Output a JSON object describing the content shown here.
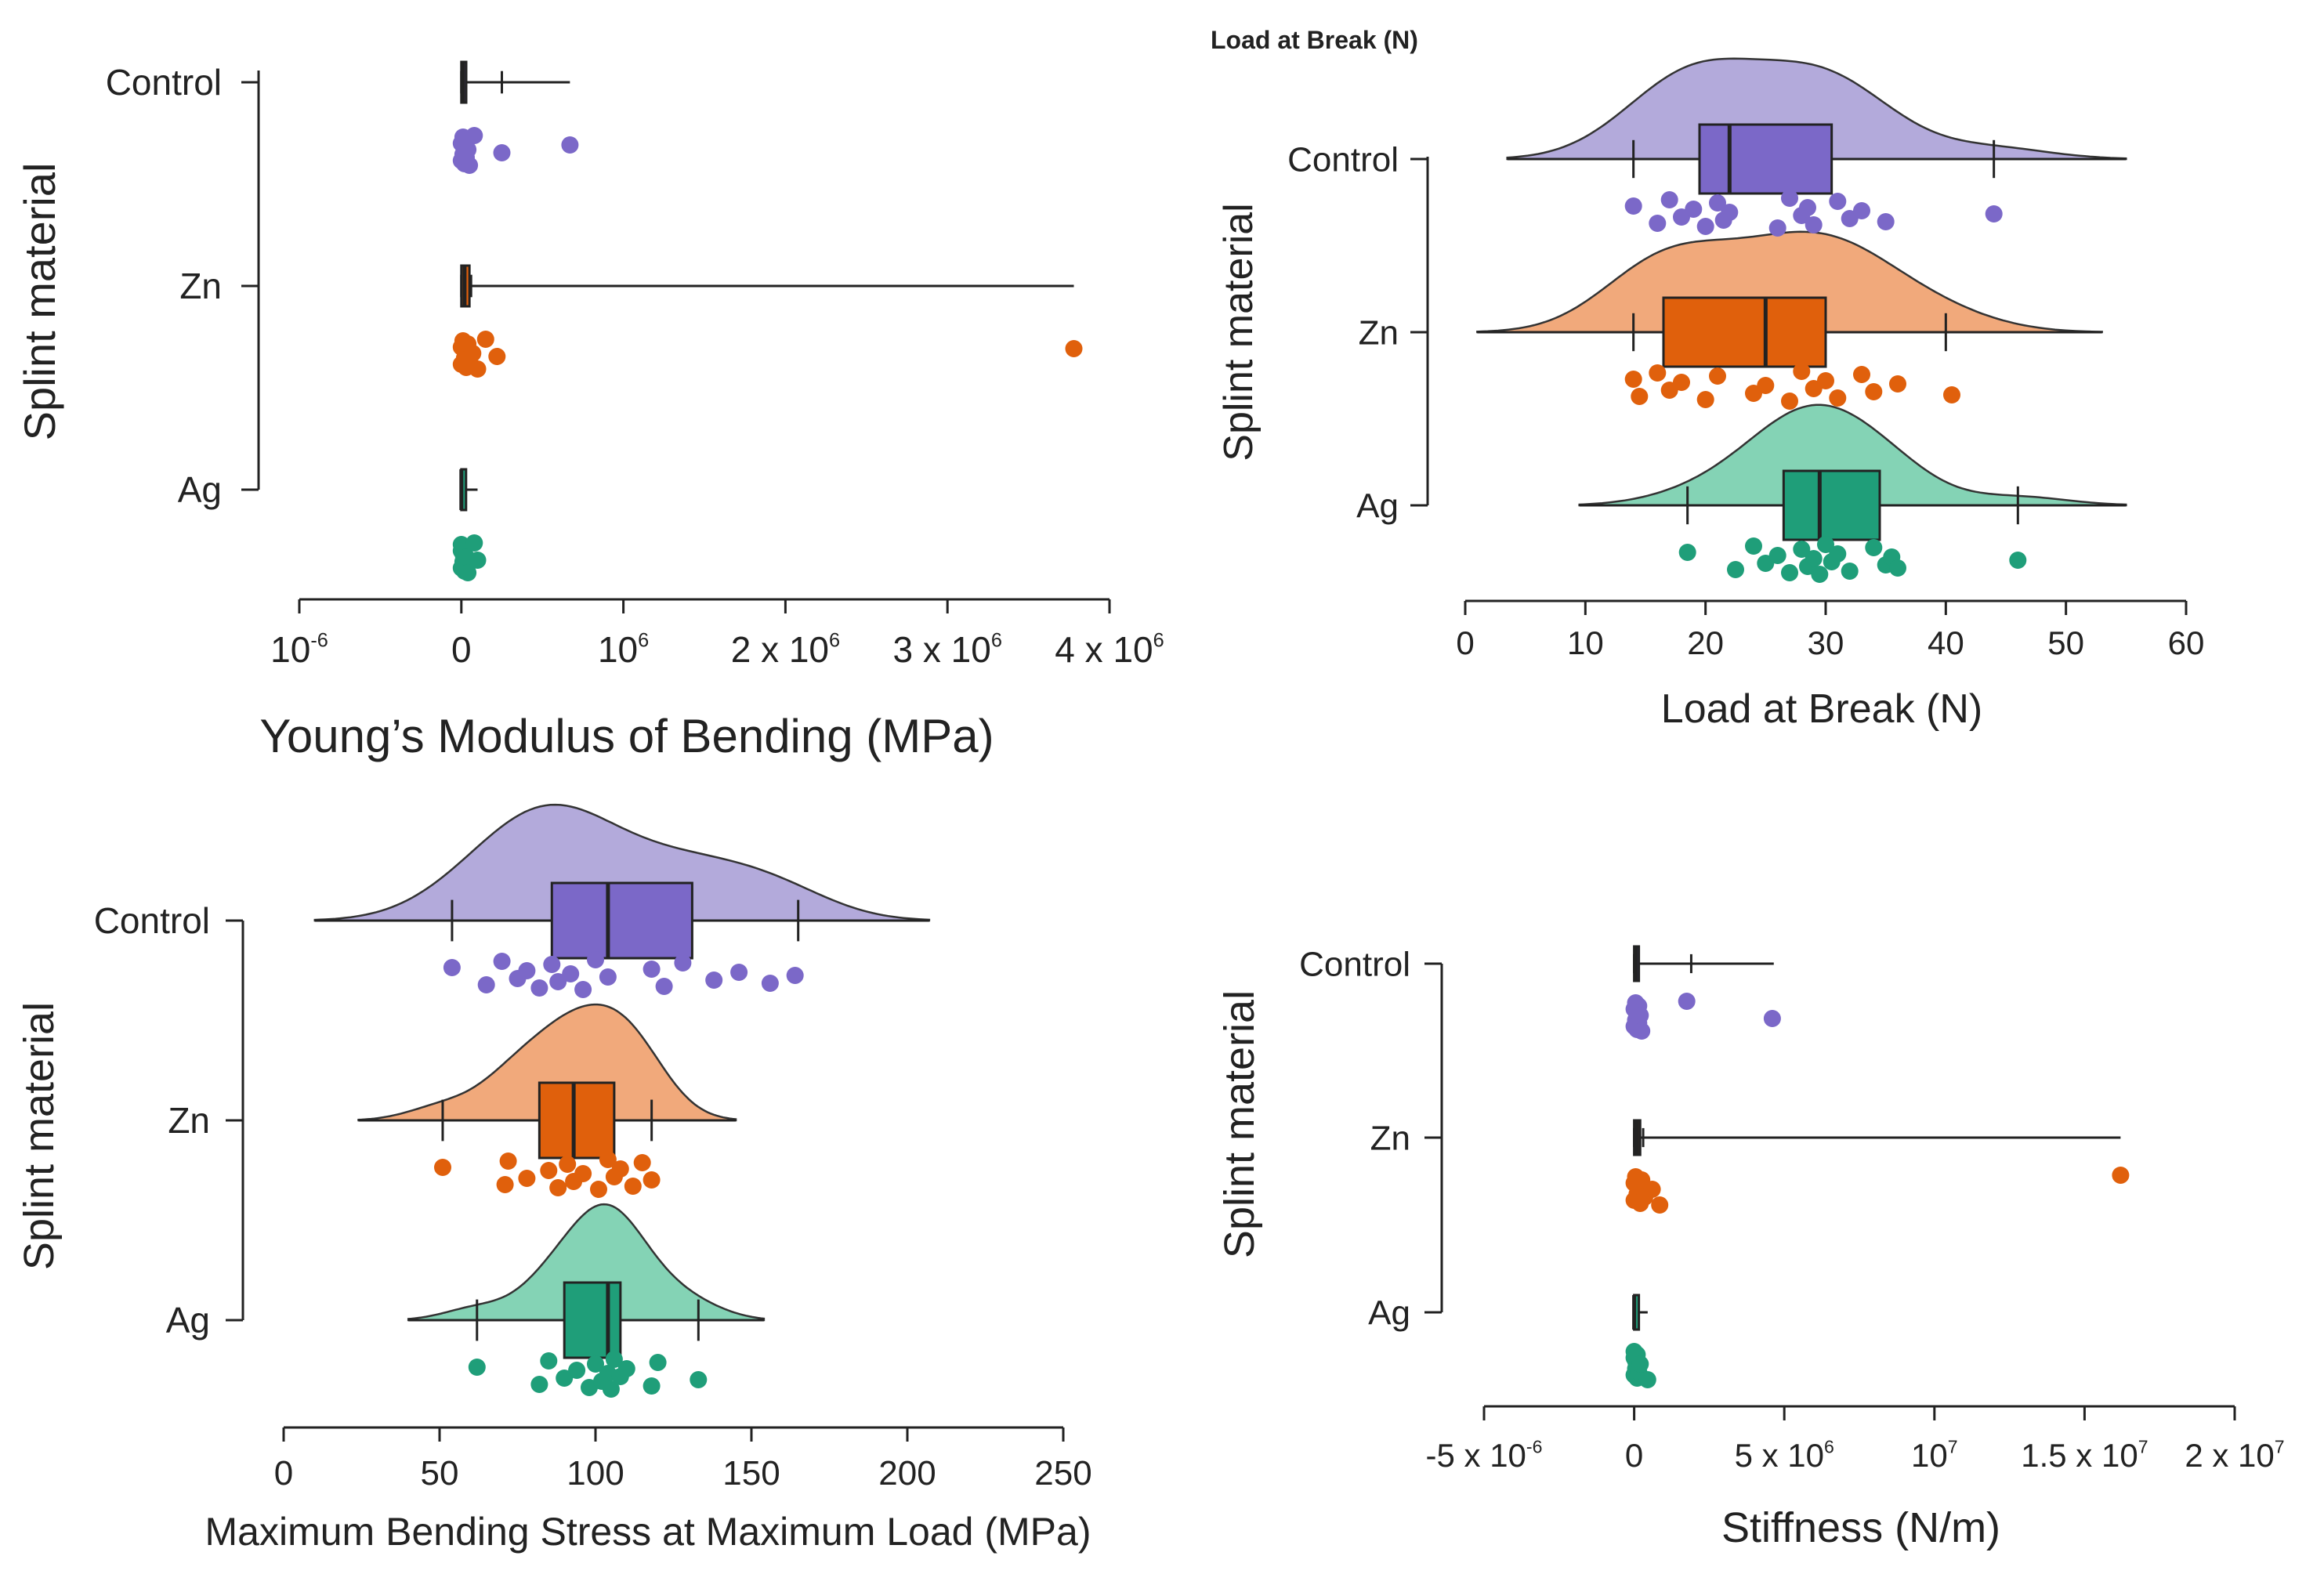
{
  "panels": [
    {
      "id": "youngs-modulus",
      "panel_title": "",
      "xlabel": "Young’s Modulus of Bending (MPa)",
      "ylabel": "Splint material",
      "ticks": [
        {
          "v": 0,
          "base": "10",
          "sup": "-6"
        },
        {
          "v": 1,
          "base": "0",
          "sup": ""
        },
        {
          "v": 2,
          "base": "10",
          "sup": "6"
        },
        {
          "v": 3,
          "base": "2 x 10",
          "sup": "6"
        },
        {
          "v": 4,
          "base": "3 x 10",
          "sup": "6"
        },
        {
          "v": 5,
          "base": "4 x 10",
          "sup": "6"
        }
      ]
    },
    {
      "id": "load-at-break",
      "panel_title": "Load at Break (N)",
      "xlabel": "Load at Break (N)",
      "ylabel": "Splint material",
      "ticks": [
        {
          "v": 0,
          "base": "0",
          "sup": ""
        },
        {
          "v": 10,
          "base": "10",
          "sup": ""
        },
        {
          "v": 20,
          "base": "20",
          "sup": ""
        },
        {
          "v": 30,
          "base": "30",
          "sup": ""
        },
        {
          "v": 40,
          "base": "40",
          "sup": ""
        },
        {
          "v": 50,
          "base": "50",
          "sup": ""
        },
        {
          "v": 60,
          "base": "60",
          "sup": ""
        }
      ]
    },
    {
      "id": "max-bending-stress",
      "panel_title": "",
      "xlabel": "Maximum Bending Stress at Maximum Load (MPa)",
      "ylabel": "Splint material",
      "ticks": [
        {
          "v": 0,
          "base": "0",
          "sup": ""
        },
        {
          "v": 50,
          "base": "50",
          "sup": ""
        },
        {
          "v": 100,
          "base": "100",
          "sup": ""
        },
        {
          "v": 150,
          "base": "150",
          "sup": ""
        },
        {
          "v": 200,
          "base": "200",
          "sup": ""
        },
        {
          "v": 250,
          "base": "250",
          "sup": ""
        }
      ]
    },
    {
      "id": "stiffness",
      "panel_title": "",
      "xlabel": "Stiffness (N/m)",
      "ylabel": "Splint material",
      "ticks": [
        {
          "v": 0,
          "base": "-5 x 10",
          "sup": "-6"
        },
        {
          "v": 1,
          "base": "0",
          "sup": ""
        },
        {
          "v": 2,
          "base": "5 x 10",
          "sup": "6"
        },
        {
          "v": 3,
          "base": "10",
          "sup": "7"
        },
        {
          "v": 4,
          "base": "1.5 x 10",
          "sup": "7"
        },
        {
          "v": 5,
          "base": "2 x 10",
          "sup": "7"
        }
      ]
    }
  ],
  "groups": [
    {
      "name": "Control",
      "color": "#7b68c8",
      "fill": "#b3aadb"
    },
    {
      "name": "Zn",
      "color": "#e0600c",
      "fill": "#f1a97b"
    },
    {
      "name": "Ag",
      "color": "#1f9e79",
      "fill": "#84d3b5"
    }
  ],
  "chart_data": [
    {
      "type": "raincloud",
      "panel": "youngs-modulus",
      "title": "",
      "xlabel": "Young’s Modulus of Bending (MPa)",
      "ylabel": "Splint material",
      "x_scale_note": "axis ticks in order: 10^-6, 0, 10^6, 2x10^6, 3x10^6, 4x10^6 (plotted at index positions 0-5)",
      "xlim": [
        0,
        5
      ],
      "series": [
        {
          "name": "Control",
          "box": {
            "min": 1.0,
            "q1": 1.0,
            "median": 1.01,
            "q3": 1.03,
            "max": 1.25
          },
          "whisker_max": 1.67,
          "points": [
            1.0,
            1.0,
            1.01,
            1.01,
            1.02,
            1.02,
            1.03,
            1.03,
            1.04,
            1.05,
            1.08,
            1.25,
            1.67
          ]
        },
        {
          "name": "Zn",
          "box": {
            "min": 1.0,
            "q1": 1.0,
            "median": 1.02,
            "q3": 1.05,
            "max": 1.06
          },
          "whisker_max": 4.78,
          "points": [
            1.0,
            1.0,
            1.01,
            1.02,
            1.02,
            1.03,
            1.04,
            1.05,
            1.07,
            1.1,
            1.15,
            1.22,
            4.78
          ]
        },
        {
          "name": "Ag",
          "box": {
            "min": 1.0,
            "q1": 1.0,
            "median": 1.0,
            "q3": 1.02,
            "max": 1.02
          },
          "whisker_max": 1.1,
          "points": [
            1.0,
            1.0,
            1.0,
            1.01,
            1.01,
            1.02,
            1.02,
            1.03,
            1.03,
            1.04,
            1.08,
            1.1
          ]
        }
      ]
    },
    {
      "type": "raincloud",
      "panel": "load-at-break",
      "title": "Load at Break (N)",
      "xlabel": "Load at Break (N)",
      "ylabel": "Splint material",
      "xlim": [
        0,
        60
      ],
      "series": [
        {
          "name": "Control",
          "density_range": [
            3.5,
            55
          ],
          "box": {
            "min": 14,
            "q1": 19.5,
            "median": 22,
            "q3": 30.5,
            "max": 44
          },
          "points": [
            14,
            16,
            17,
            18,
            19,
            20,
            21,
            21.5,
            22,
            26,
            27,
            28,
            28.5,
            29,
            31,
            32,
            33,
            35,
            44
          ]
        },
        {
          "name": "Zn",
          "density_range": [
            1,
            53
          ],
          "box": {
            "min": 14,
            "q1": 16.5,
            "median": 25,
            "q3": 30,
            "max": 40
          },
          "points": [
            14,
            14.5,
            16,
            17,
            18,
            20,
            21,
            24,
            25,
            27,
            28,
            29,
            30,
            31,
            33,
            34,
            36,
            40.5
          ]
        },
        {
          "name": "Ag",
          "density_range": [
            9.5,
            55
          ],
          "box": {
            "min": 18.5,
            "q1": 26.5,
            "median": 29.5,
            "q3": 34.5,
            "max": 46
          },
          "points": [
            18.5,
            22.5,
            24,
            25,
            26,
            27,
            28,
            28.5,
            29,
            29.5,
            30,
            30.5,
            31,
            32,
            34,
            35,
            35.5,
            36,
            46
          ]
        }
      ]
    },
    {
      "type": "raincloud",
      "panel": "max-bending-stress",
      "title": "",
      "xlabel": "Maximum Bending Stress at Maximum Load (MPa)",
      "ylabel": "Splint material",
      "xlim": [
        0,
        250
      ],
      "series": [
        {
          "name": "Control",
          "density_range": [
            10,
            207
          ],
          "box": {
            "min": 54,
            "q1": 86,
            "median": 104,
            "q3": 131,
            "max": 165
          },
          "points": [
            54,
            65,
            70,
            75,
            78,
            82,
            86,
            88,
            92,
            96,
            100,
            104,
            118,
            122,
            128,
            138,
            146,
            156,
            164
          ]
        },
        {
          "name": "Zn",
          "density_range": [
            24,
            145
          ],
          "box": {
            "min": 51,
            "q1": 82,
            "median": 93,
            "q3": 106,
            "max": 118
          },
          "points": [
            51,
            71,
            72,
            78,
            85,
            88,
            91,
            93,
            96,
            101,
            104,
            106,
            108,
            112,
            115,
            118
          ]
        },
        {
          "name": "Ag",
          "density_range": [
            40,
            154
          ],
          "box": {
            "min": 62,
            "q1": 90,
            "median": 104,
            "q3": 108,
            "max": 133
          },
          "points": [
            62,
            82,
            85,
            90,
            94,
            98,
            100,
            102,
            104,
            105,
            106,
            108,
            110,
            118,
            120,
            133
          ]
        }
      ]
    },
    {
      "type": "raincloud",
      "panel": "stiffness",
      "title": "",
      "xlabel": "Stiffness (N/m)",
      "ylabel": "Splint material",
      "x_scale_note": "axis ticks in order: -5x10^-6, 0, 5x10^6, 10^7, 1.5x10^7, 2x10^7 (plotted at index positions 0-5)",
      "xlim": [
        0,
        5
      ],
      "series": [
        {
          "name": "Control",
          "box": {
            "min": 1.0,
            "q1": 1.0,
            "median": 1.01,
            "q3": 1.03,
            "max": 1.38
          },
          "whisker_max": 1.93,
          "points": [
            1.0,
            1.0,
            1.01,
            1.01,
            1.02,
            1.02,
            1.03,
            1.03,
            1.04,
            1.05,
            1.35,
            1.92
          ]
        },
        {
          "name": "Zn",
          "box": {
            "min": 1.0,
            "q1": 1.0,
            "median": 1.02,
            "q3": 1.04,
            "max": 1.06
          },
          "whisker_max": 4.24,
          "points": [
            1.0,
            1.0,
            1.01,
            1.02,
            1.03,
            1.04,
            1.05,
            1.07,
            1.12,
            1.17,
            4.24
          ]
        },
        {
          "name": "Ag",
          "box": {
            "min": 1.0,
            "q1": 1.0,
            "median": 1.0,
            "q3": 1.01,
            "max": 1.01
          },
          "whisker_max": 1.09,
          "points": [
            1.0,
            1.0,
            1.0,
            1.01,
            1.01,
            1.02,
            1.02,
            1.03,
            1.04,
            1.09
          ]
        }
      ]
    }
  ]
}
